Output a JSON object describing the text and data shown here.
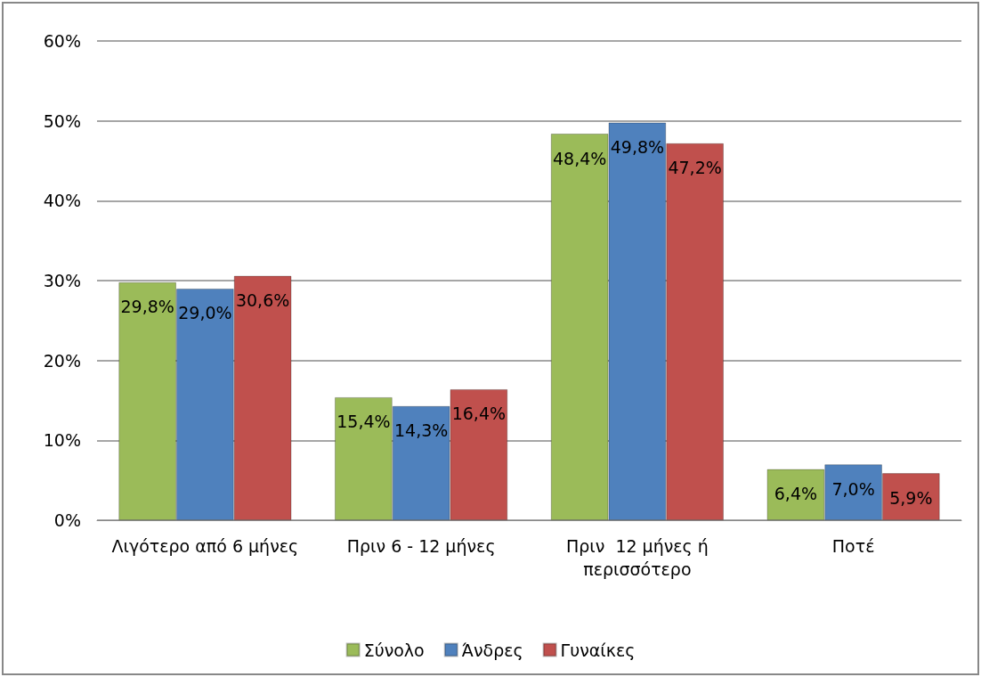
{
  "chart_data": {
    "type": "bar",
    "categories": [
      "Λιγότερο από 6 μήνες",
      "Πριν 6 - 12 μήνες",
      "Πριν  12 μήνες ή περισσότερο",
      "Ποτέ"
    ],
    "series": [
      {
        "name": "Σύνολο",
        "color": "#9bbb59",
        "values": [
          29.8,
          15.4,
          48.4,
          6.4
        ],
        "value_labels": [
          "29,8%",
          "15,4%",
          "48,4%",
          "6,4%"
        ]
      },
      {
        "name": "Άνδρες",
        "color": "#4f81bd",
        "values": [
          29.0,
          14.3,
          49.8,
          7.0
        ],
        "value_labels": [
          "29,0%",
          "14,3%",
          "49,8%",
          "7,0%"
        ]
      },
      {
        "name": "Γυναίκες",
        "color": "#c0504d",
        "values": [
          30.6,
          16.4,
          47.2,
          5.9
        ],
        "value_labels": [
          "30,6%",
          "16,4%",
          "47,2%",
          "5,9%"
        ]
      }
    ],
    "ylim": [
      0,
      60
    ],
    "yticks": [
      {
        "value": 0,
        "label": "0%"
      },
      {
        "value": 10,
        "label": "10%"
      },
      {
        "value": 20,
        "label": "20%"
      },
      {
        "value": 30,
        "label": "30%"
      },
      {
        "value": 40,
        "label": "40%"
      },
      {
        "value": 50,
        "label": "50%"
      },
      {
        "value": 60,
        "label": "60%"
      }
    ],
    "grid": "y",
    "legend": "bottom"
  }
}
